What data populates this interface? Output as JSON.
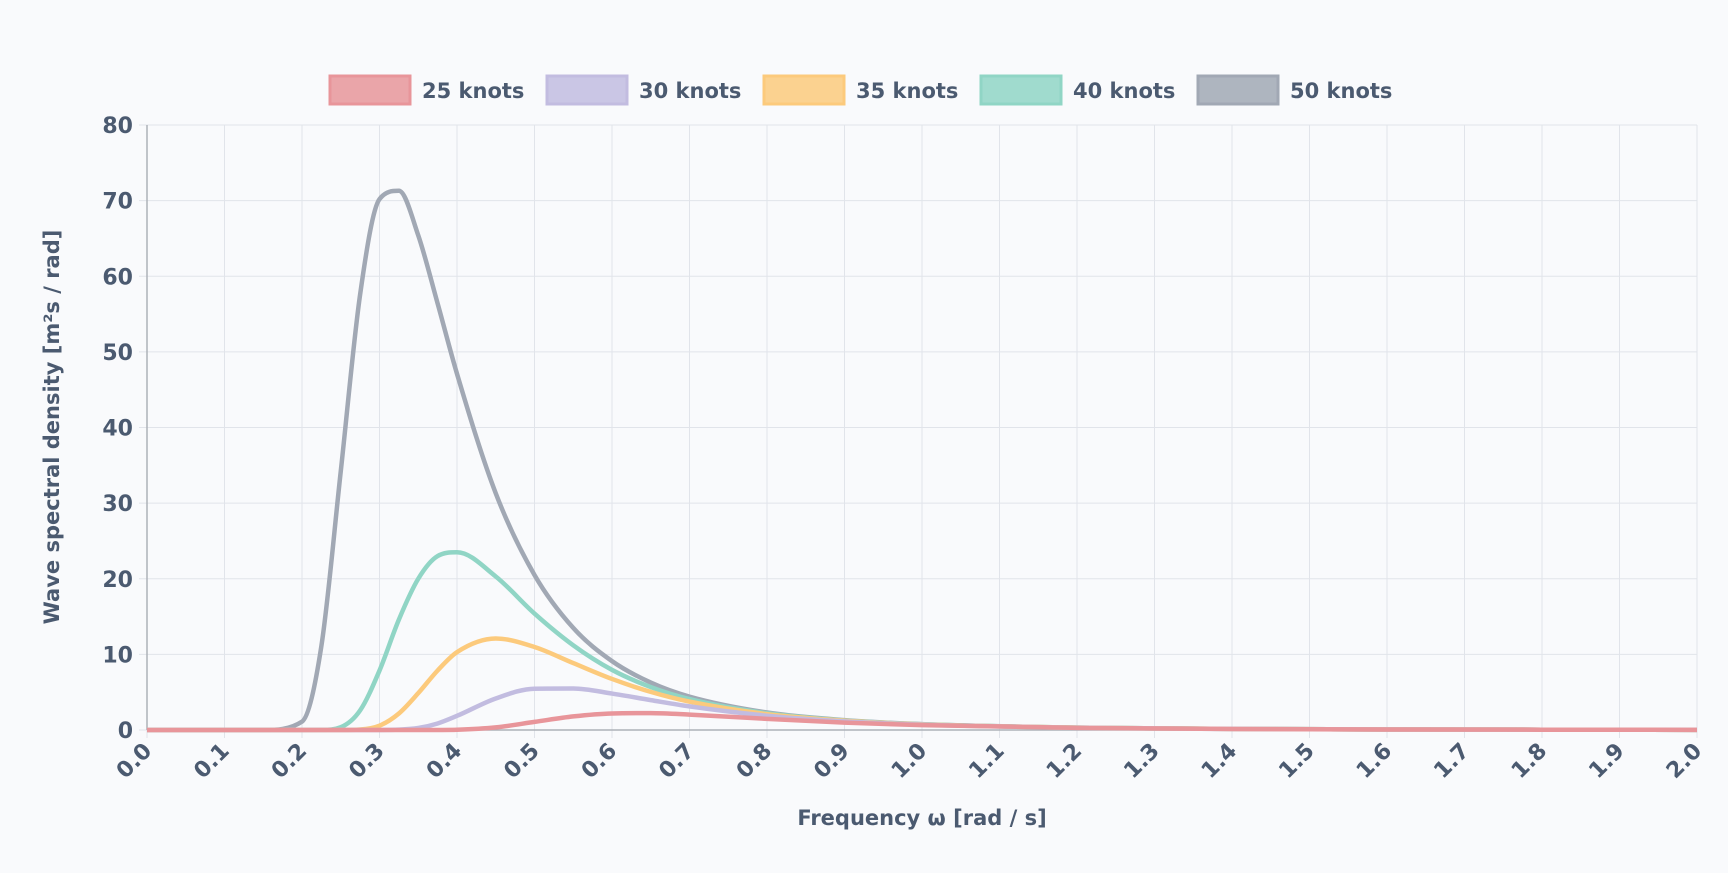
{
  "chart_data": {
    "type": "line",
    "title": "",
    "xlabel": "Frequency ω [rad / s]",
    "ylabel": "Wave spectral density [m²s / rad]",
    "xlim": [
      0,
      2.0
    ],
    "ylim": [
      0,
      80
    ],
    "x_ticks": [
      "0.0",
      "0.1",
      "0.2",
      "0.3",
      "0.4",
      "0.5",
      "0.6",
      "0.7",
      "0.8",
      "0.9",
      "1.0",
      "1.1",
      "1.2",
      "1.3",
      "1.4",
      "1.5",
      "1.6",
      "1.7",
      "1.8",
      "1.9",
      "2.0"
    ],
    "y_ticks": [
      "0",
      "10",
      "20",
      "30",
      "40",
      "50",
      "60",
      "70",
      "80"
    ],
    "grid": true,
    "legend_position": "top",
    "x": [
      0,
      0.1,
      0.15,
      0.2,
      0.225,
      0.25,
      0.275,
      0.3,
      0.325,
      0.35,
      0.375,
      0.4,
      0.45,
      0.5,
      0.55,
      0.6,
      0.65,
      0.7,
      0.8,
      0.9,
      1.0,
      1.2,
      1.4,
      1.6,
      1.8,
      2.0
    ],
    "series": [
      {
        "name": "25 knots",
        "color": "#e8959a",
        "values": [
          0,
          0,
          0,
          0,
          0,
          0,
          0,
          0,
          0,
          0,
          0.005,
          0.035,
          0.347,
          1.07,
          1.8,
          2.19,
          2.23,
          2.04,
          1.47,
          0.978,
          0.64,
          0.285,
          0.138,
          0.0721,
          0.0405,
          0.0241
        ]
      },
      {
        "name": "30 knots",
        "color": "#c2bce0",
        "values": [
          0,
          0,
          0,
          0,
          0,
          0,
          0,
          0,
          0.043,
          0.265,
          0.864,
          1.87,
          4.17,
          5.46,
          5.49,
          4.82,
          3.95,
          3.12,
          1.89,
          1.14,
          0.709,
          0.299,
          0.1413,
          0.0733,
          0.0409,
          0.0242
        ]
      },
      {
        "name": "35 knots",
        "color": "#fcca7c",
        "values": [
          0,
          0,
          0,
          0,
          0,
          0,
          0.063,
          0.573,
          2.18,
          4.87,
          7.87,
          10.3,
          12.1,
          10.98,
          8.85,
          6.75,
          5.04,
          3.75,
          2.1,
          1.22,
          0.741,
          0.306,
          0.143,
          0.074,
          0.0411,
          0.0243
        ]
      },
      {
        "name": "40 knots",
        "color": "#90d5c5",
        "values": [
          0,
          0,
          0,
          0,
          0.011,
          0.364,
          2.59,
          7.86,
          14.6,
          20.0,
          23.0,
          23.5,
          20.3,
          15.4,
          11.2,
          7.95,
          5.68,
          4.09,
          2.21,
          1.26,
          0.756,
          0.309,
          0.1438,
          0.0741,
          0.0411,
          0.0243
        ]
      },
      {
        "name": "50 knots",
        "color": "#a1a8b4",
        "values": [
          0,
          0,
          0,
          1.11,
          11.1,
          34.2,
          57.6,
          70.2,
          71.3,
          65.4,
          56.4,
          47.1,
          31.3,
          20.5,
          13.5,
          9.11,
          6.27,
          4.41,
          2.31,
          1.3,
          0.77,
          0.311,
          0.1444,
          0.0742,
          0.0412,
          0.0243
        ]
      }
    ]
  }
}
